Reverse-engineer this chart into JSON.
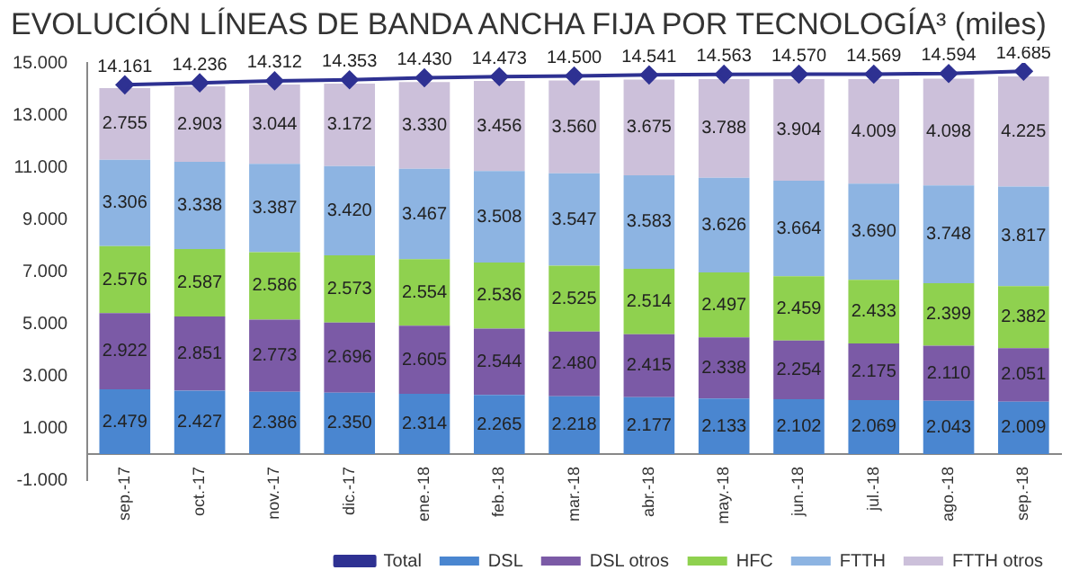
{
  "chart_data": {
    "type": "bar",
    "stacked": true,
    "title": "EVOLUCIÓN LÍNEAS DE BANDA ANCHA FIJA POR TECNOLOGÍA³ (miles)",
    "categories": [
      "sep.-17",
      "oct.-17",
      "nov.-17",
      "dic.-17",
      "ene.-18",
      "feb.-18",
      "mar.-18",
      "abr.-18",
      "may.-18",
      "jun.-18",
      "jul.-18",
      "ago.-18",
      "sep.-18"
    ],
    "series": [
      {
        "name": "DSL",
        "color": "#4a86d0",
        "values": [
          2479,
          2427,
          2386,
          2350,
          2314,
          2265,
          2218,
          2177,
          2133,
          2102,
          2069,
          2043,
          2009
        ],
        "value_labels": [
          "2.479",
          "2.427",
          "2.386",
          "2.350",
          "2.314",
          "2.265",
          "2.218",
          "2.177",
          "2.133",
          "2.102",
          "2.069",
          "2.043",
          "2.009"
        ]
      },
      {
        "name": "DSL otros",
        "color": "#7b5aa6",
        "values": [
          2922,
          2851,
          2773,
          2696,
          2605,
          2544,
          2480,
          2415,
          2338,
          2254,
          2175,
          2110,
          2051
        ],
        "value_labels": [
          "2.922",
          "2.851",
          "2.773",
          "2.696",
          "2.605",
          "2.544",
          "2.480",
          "2.415",
          "2.338",
          "2.254",
          "2.175",
          "2.110",
          "2.051"
        ]
      },
      {
        "name": "HFC",
        "color": "#8fd14f",
        "values": [
          2576,
          2587,
          2586,
          2573,
          2554,
          2536,
          2525,
          2514,
          2497,
          2459,
          2433,
          2399,
          2382
        ],
        "value_labels": [
          "2.576",
          "2.587",
          "2.586",
          "2.573",
          "2.554",
          "2.536",
          "2.525",
          "2.514",
          "2.497",
          "2.459",
          "2.433",
          "2.399",
          "2.382"
        ]
      },
      {
        "name": "FTTH",
        "color": "#8db4e2",
        "values": [
          3306,
          3338,
          3387,
          3420,
          3467,
          3508,
          3547,
          3583,
          3626,
          3664,
          3690,
          3748,
          3817
        ],
        "value_labels": [
          "3.306",
          "3.338",
          "3.387",
          "3.420",
          "3.467",
          "3.508",
          "3.547",
          "3.583",
          "3.626",
          "3.664",
          "3.690",
          "3.748",
          "3.817"
        ]
      },
      {
        "name": "FTTH otros",
        "color": "#ccc0da",
        "values": [
          2755,
          2903,
          3044,
          3172,
          3330,
          3456,
          3560,
          3675,
          3788,
          3904,
          4009,
          4098,
          4225
        ],
        "value_labels": [
          "2.755",
          "2.903",
          "3.044",
          "3.172",
          "3.330",
          "3.456",
          "3.560",
          "3.675",
          "3.788",
          "3.904",
          "4.009",
          "4.098",
          "4.225"
        ]
      },
      {
        "name": "Total",
        "type": "line",
        "color": "#2e3192",
        "marker": "diamond",
        "values": [
          14161,
          14236,
          14312,
          14353,
          14430,
          14473,
          14500,
          14541,
          14563,
          14570,
          14569,
          14594,
          14685
        ],
        "value_labels": [
          "14.161",
          "14.236",
          "14.312",
          "14.353",
          "14.430",
          "14.473",
          "14.500",
          "14.541",
          "14.563",
          "14.570",
          "14.569",
          "14.594",
          "14.685"
        ]
      }
    ],
    "ylim": [
      -1000,
      15000
    ],
    "yticks": [
      {
        "value": -1000,
        "label": "-1.000"
      },
      {
        "value": 1000,
        "label": "1.000"
      },
      {
        "value": 3000,
        "label": "3.000"
      },
      {
        "value": 5000,
        "label": "5.000"
      },
      {
        "value": 7000,
        "label": "7.000"
      },
      {
        "value": 9000,
        "label": "9.000"
      },
      {
        "value": 11000,
        "label": "11.000"
      },
      {
        "value": 13000,
        "label": "13.000"
      },
      {
        "value": 15000,
        "label": "15.000"
      }
    ],
    "grid": false,
    "legend": "bottom"
  }
}
